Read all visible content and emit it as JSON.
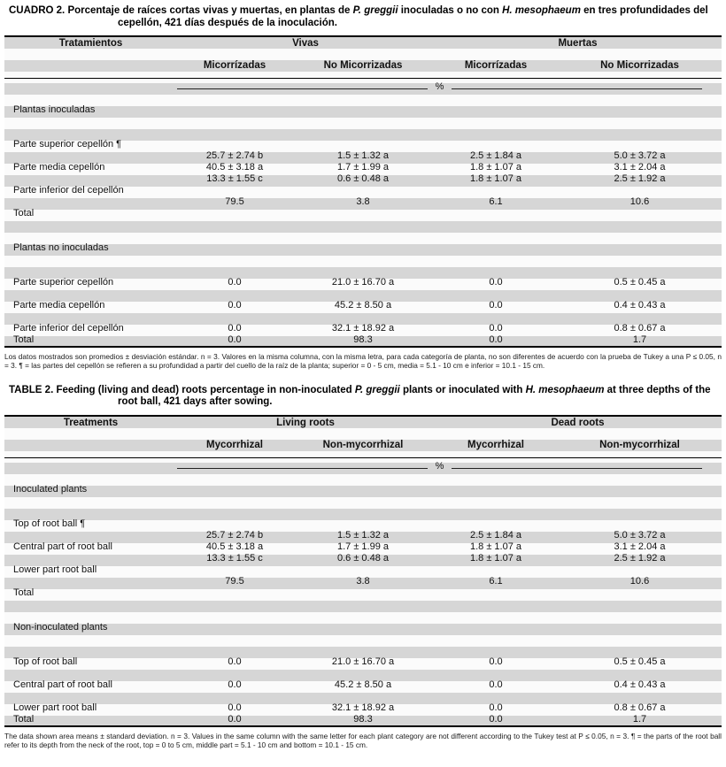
{
  "page": {
    "bg": "#ffffff",
    "stripe": "#d6d6d6",
    "percent_label": "%"
  },
  "tables": [
    {
      "caption": [
        {
          "t": "CUADRO 2. Porcentaje de raíces cortas vivas y muertas, en plantas de "
        },
        {
          "t": "P. greggii",
          "i": true
        },
        {
          "t": " inoculadas o no con "
        },
        {
          "t": "H. mesophaeum",
          "i": true
        },
        {
          "t": " en tres profundidades del cepellón, 421 días después de la inoculación."
        }
      ],
      "col_label_header": "Tratamientos",
      "group_headers": [
        "Vivas",
        "Muertas"
      ],
      "sub_headers": [
        "Micorrízadas",
        "No Micorrizadas",
        "Micorrízadas",
        "No Micorrizadas"
      ],
      "rows": [
        {
          "type": "spacer"
        },
        {
          "type": "section",
          "label": "Plantas inoculadas"
        },
        {
          "type": "spacer"
        },
        {
          "type": "spacer"
        },
        {
          "type": "data",
          "label": "Parte superior cepellón ¶",
          "values": []
        },
        {
          "type": "data",
          "label": "",
          "values": [
            "25.7 ± 2.74 b",
            "1.5 ± 1.32 a",
            "2.5 ± 1.84 a",
            "5.0 ± 3.72 a"
          ]
        },
        {
          "type": "data",
          "label": "Parte media cepellón",
          "values": [
            "40.5 ± 3.18 a",
            "1.7 ± 1.99 a",
            "1.8 ± 1.07 a",
            "3.1 ± 2.04 a"
          ]
        },
        {
          "type": "data",
          "label": "",
          "values": [
            "13.3 ± 1.55 c",
            "0.6 ± 0.48 a",
            "1.8 ± 1.07 a",
            "2.5 ± 1.92 a"
          ]
        },
        {
          "type": "data",
          "label": "Parte inferior del cepellón",
          "values": []
        },
        {
          "type": "data",
          "label": "",
          "values": [
            "79.5",
            "3.8",
            "6.1",
            "10.6"
          ]
        },
        {
          "type": "data",
          "label": "Total",
          "values": []
        },
        {
          "type": "spacer"
        },
        {
          "type": "spacer"
        },
        {
          "type": "section",
          "label": "Plantas no inoculadas"
        },
        {
          "type": "spacer"
        },
        {
          "type": "spacer"
        },
        {
          "type": "data",
          "label": "Parte superior cepellón",
          "values": [
            "0.0",
            "21.0 ± 16.70 a",
            "0.0",
            "0.5 ± 0.45 a"
          ]
        },
        {
          "type": "spacer"
        },
        {
          "type": "data",
          "label": "Parte media cepellón",
          "values": [
            "0.0",
            "45.2 ± 8.50 a",
            "0.0",
            "0.4 ± 0.43 a"
          ]
        },
        {
          "type": "spacer"
        },
        {
          "type": "data",
          "label": "Parte inferior del cepellón",
          "values": [
            "0.0",
            "32.1 ± 18.92 a",
            "0.0",
            "0.8 ± 0.67 a"
          ]
        },
        {
          "type": "data",
          "label": "Total",
          "values": [
            "0.0",
            "98.3",
            "0.0",
            "1.7"
          ]
        }
      ],
      "footnote": "Los datos mostrados son promedios ± desviación estándar. n = 3. Valores en la misma columna, con la misma letra, para cada categoría de planta, no son diferentes de acuerdo con la prueba de Tukey a una P ≤ 0.05, n = 3. ¶ = las partes del cepellón se refieren a su profundidad a partir del cuello de la raíz de la planta; superior = 0 - 5 cm, media = 5.1 - 10 cm e inferior = 10.1 - 15 cm."
    },
    {
      "caption": [
        {
          "t": "TABLE 2. Feeding (living and dead) roots percentage in non-inoculated "
        },
        {
          "t": "P. greggii",
          "i": true
        },
        {
          "t": " plants or inoculated with "
        },
        {
          "t": "H. mesophaeum",
          "i": true
        },
        {
          "t": " at three depths of the root ball, 421 days after sowing."
        }
      ],
      "col_label_header": "Treatments",
      "group_headers": [
        "Living roots",
        "Dead roots"
      ],
      "sub_headers": [
        "Mycorrhizal",
        "Non-mycorrhizal",
        "Mycorrhizal",
        "Non-mycorrhizal"
      ],
      "rows": [
        {
          "type": "spacer"
        },
        {
          "type": "section",
          "label": "Inoculated plants"
        },
        {
          "type": "spacer"
        },
        {
          "type": "spacer"
        },
        {
          "type": "data",
          "label": "Top of root ball ¶",
          "values": []
        },
        {
          "type": "data",
          "label": "",
          "values": [
            "25.7 ± 2.74 b",
            "1.5 ± 1.32 a",
            "2.5 ± 1.84 a",
            "5.0 ± 3.72 a"
          ]
        },
        {
          "type": "data",
          "label": "Central part of root ball",
          "values": [
            "40.5 ± 3.18 a",
            "1.7 ± 1.99 a",
            "1.8 ± 1.07 a",
            "3.1 ± 2.04 a"
          ]
        },
        {
          "type": "data",
          "label": "",
          "values": [
            "13.3 ± 1.55 c",
            "0.6 ± 0.48 a",
            "1.8 ± 1.07 a",
            "2.5 ± 1.92 a"
          ]
        },
        {
          "type": "data",
          "label": "Lower part root ball",
          "values": []
        },
        {
          "type": "data",
          "label": "",
          "values": [
            "79.5",
            "3.8",
            "6.1",
            "10.6"
          ]
        },
        {
          "type": "data",
          "label": "Total",
          "values": []
        },
        {
          "type": "spacer"
        },
        {
          "type": "spacer"
        },
        {
          "type": "section",
          "label": "Non-inoculated plants"
        },
        {
          "type": "spacer"
        },
        {
          "type": "spacer"
        },
        {
          "type": "data",
          "label": "Top of root ball",
          "values": [
            "0.0",
            "21.0 ± 16.70 a",
            "0.0",
            "0.5 ± 0.45 a"
          ]
        },
        {
          "type": "spacer"
        },
        {
          "type": "data",
          "label": "Central part of root ball",
          "values": [
            "0.0",
            "45.2 ± 8.50 a",
            "0.0",
            "0.4 ± 0.43 a"
          ]
        },
        {
          "type": "spacer"
        },
        {
          "type": "data",
          "label": "Lower part root ball",
          "values": [
            "0.0",
            "32.1 ± 18.92 a",
            "0.0",
            "0.8 ± 0.67 a"
          ]
        },
        {
          "type": "data",
          "label": "Total",
          "values": [
            "0.0",
            "98.3",
            "0.0",
            "1.7"
          ]
        }
      ],
      "footnote": "The data shown area means ± standard deviation. n = 3. Values in the same column with the same letter for each plant category are not different according to the Tukey test at P ≤ 0.05, n = 3. ¶ = the parts of the root ball refer to its depth from the neck of the root, top = 0 to 5 cm, middle part = 5.1 - 10 cm and bottom = 10.1 - 15 cm."
    }
  ]
}
